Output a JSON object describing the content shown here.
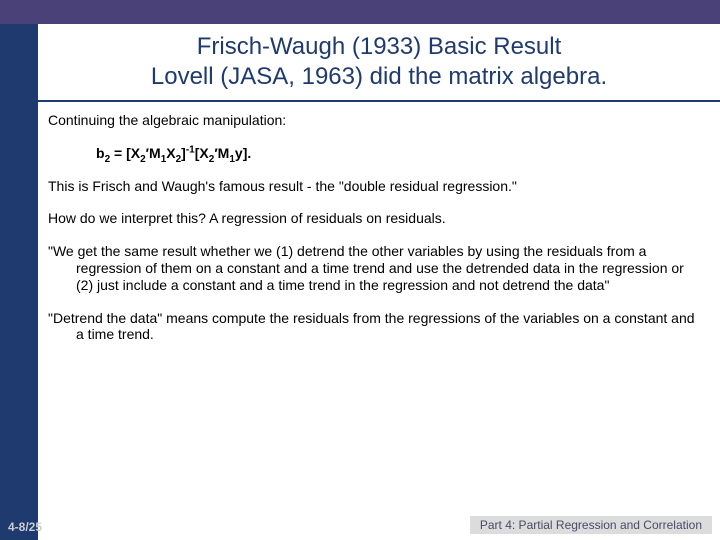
{
  "colors": {
    "top_bar": "#4a4178",
    "left_stripe": "#1f3a6e",
    "title_text": "#1f3a6e",
    "title_underline": "#1f3a6e",
    "body_text": "#000000",
    "page_num_text": "#cccccc",
    "footer_bg": "#dcdcdc",
    "footer_text": "#4a4a6a",
    "background": "#ffffff"
  },
  "title": {
    "line1": "Frisch-Waugh (1933) Basic Result",
    "line2": "Lovell (JASA, 1963) did the matrix algebra."
  },
  "body": {
    "p1": "Continuing the algebraic manipulation:",
    "formula": {
      "b_label": "b",
      "b_sub": "2",
      "eq": "  =  [",
      "X1": "X",
      "X1_sub": "2",
      "prime1": "′",
      "M1": "M",
      "M1_sub": "1",
      "X2": "X",
      "X2_sub": "2",
      "close1": "]",
      "exp": "-1",
      "open2": "[",
      "X3": "X",
      "X3_sub": "2",
      "prime2": "′",
      "M2": "M",
      "M2_sub": "1",
      "y": "y",
      "close2": "]."
    },
    "p2": "This is Frisch and Waugh's famous result - the \"double residual regression.\"",
    "p3": "How do we interpret this?  A regression of residuals on residuals.",
    "p4": "\"We get the same result whether we (1) detrend the other variables by using the residuals from a regression of them on a constant and a  time trend and use the detrended data in the regression or (2) just include a constant and a time trend in the regression and not detrend the data\"",
    "p5": "\"Detrend the data\" means compute the residuals from the regressions of the variables on a constant and a time trend."
  },
  "footer": {
    "page": "4-8/25",
    "label": "Part 4: Partial Regression and Correlation"
  }
}
